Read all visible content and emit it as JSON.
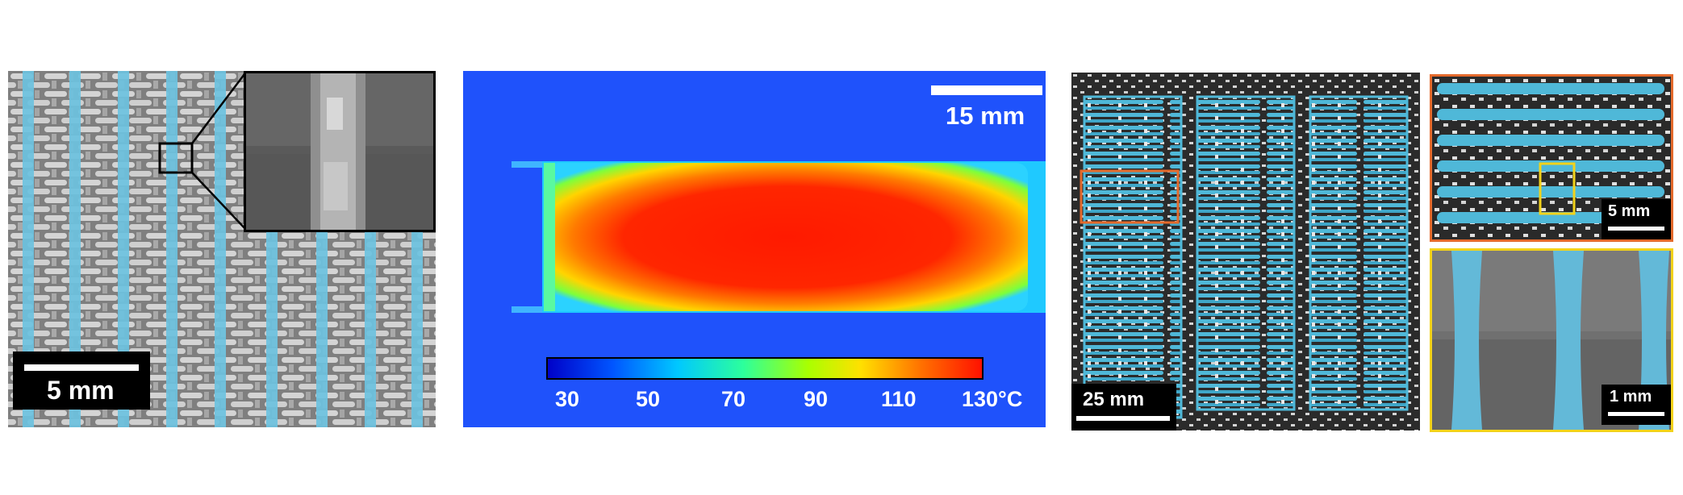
{
  "panel_a": {
    "scale_label": "5 mm",
    "tow_color": "#6cc2e0"
  },
  "panel_b": {
    "scale_label": "15 mm",
    "colorbar_ticks": [
      "30",
      "50",
      "70",
      "90",
      "110",
      "130°C"
    ]
  },
  "panel_c": {
    "scale_label": "25 mm",
    "highlight_color": "#e46a2c",
    "tow_color": "#4fb8d8"
  },
  "panel_d": {
    "scale_label": "5 mm",
    "frame_color": "#e46a2c",
    "zoom_box_color": "#f2d21a"
  },
  "panel_e": {
    "scale_label": "1 mm",
    "frame_color": "#f2d21a"
  }
}
